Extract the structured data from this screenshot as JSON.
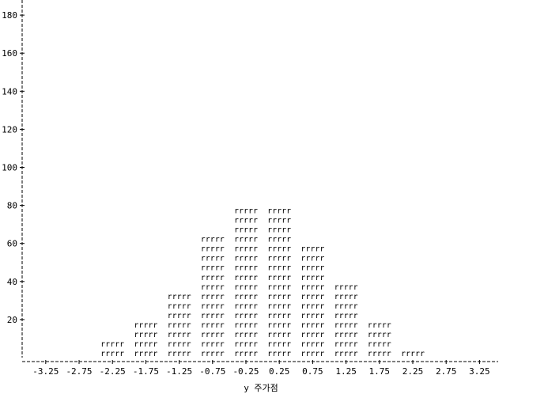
{
  "chart_data": {
    "type": "bar",
    "style": "line-printer histogram",
    "bar_symbol": "rrrrr",
    "categories": [
      "-3.25",
      "-2.75",
      "-2.25",
      "-1.75",
      "-1.25",
      "-0.75",
      "-0.25",
      "0.25",
      "0.75",
      "1.25",
      "1.75",
      "2.25",
      "2.75",
      "3.25"
    ],
    "values": [
      0,
      2,
      10,
      18,
      34,
      64,
      82,
      82,
      58,
      40,
      20,
      6,
      2,
      2
    ],
    "y_ticks": [
      20,
      40,
      60,
      80,
      100,
      120,
      140,
      160,
      180
    ],
    "ylim": [
      0,
      190
    ],
    "xlabel": "y 주가점",
    "ylabel": "",
    "grid": false,
    "legend": "none"
  }
}
